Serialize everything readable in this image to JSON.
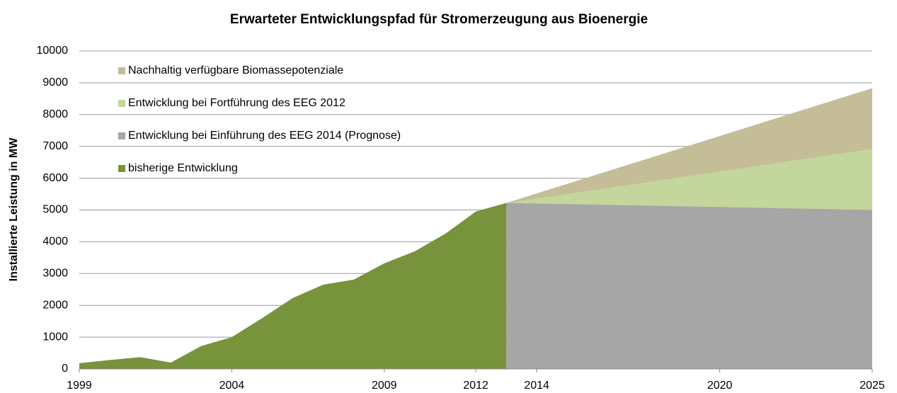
{
  "chart_data": {
    "type": "area",
    "title": "Erwarteter Entwicklungspfad für Stromerzeugung aus Bioenergie",
    "y_label": "Installierte Leistung in MW",
    "series": [
      {
        "name": "Nachhaltig verfügbare Biomassepotenziale",
        "color": "#c4bd97",
        "x": [
          2013,
          2025
        ],
        "values": [
          5220,
          8830
        ]
      },
      {
        "name": "Entwicklung bei Fortführung des EEG 2012",
        "color": "#c3d69b",
        "x": [
          2013,
          2025
        ],
        "values": [
          5220,
          6920
        ]
      },
      {
        "name": "Entwicklung bei Einführung des EEG 2014 (Prognose)",
        "color": "#a6a6a6",
        "x": [
          2013,
          2025
        ],
        "values": [
          5220,
          5000
        ]
      },
      {
        "name": "bisherige Entwicklung",
        "color": "#77933c",
        "x": [
          1999,
          2000,
          2001,
          2002,
          2003,
          2004,
          2005,
          2006,
          2007,
          2008,
          2009,
          2010,
          2011,
          2012,
          2013
        ],
        "values": [
          180,
          280,
          370,
          200,
          720,
          1000,
          1600,
          2230,
          2650,
          2810,
          3320,
          3700,
          4250,
          4950,
          5220
        ]
      }
    ],
    "xlim": [
      1999,
      2025
    ],
    "xticks": [
      1999,
      2004,
      2009,
      2012,
      2014,
      2020,
      2025
    ],
    "ylim": [
      0,
      10000
    ],
    "yticks": [
      0,
      1000,
      2000,
      3000,
      4000,
      5000,
      6000,
      7000,
      8000,
      9000,
      10000
    ],
    "grid": true,
    "legend": "upper left"
  }
}
